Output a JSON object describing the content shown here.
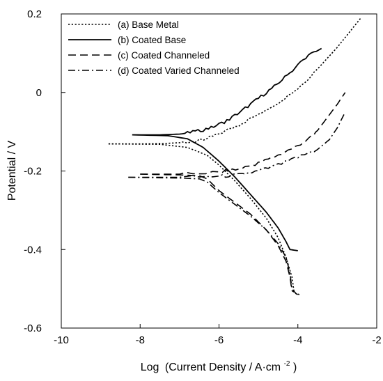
{
  "chart_data": {
    "type": "line",
    "xlabel_prefix": "Log",
    "xlabel_main": "(Current Density / A·cm",
    "xlabel_sup": "-2",
    "xlabel_suffix": ")",
    "ylabel": "Potential / V",
    "xlim": [
      -10,
      -2
    ],
    "ylim": [
      -0.6,
      0.2
    ],
    "xticks": [
      -10,
      -8,
      -6,
      -4,
      -2
    ],
    "yticks": [
      0.2,
      0,
      -0.2,
      -0.4,
      -0.6
    ],
    "xtick_labels": [
      "-10",
      "-8",
      "-6",
      "-4",
      "-2"
    ],
    "ytick_labels": [
      "0.2",
      "0",
      "-0.2",
      "-0.4",
      "-0.6"
    ],
    "grid": false,
    "legend_position": "top-left",
    "series": [
      {
        "name": "(a) Base Metal",
        "dash": "dotted",
        "anodic": [
          [
            -8.8,
            -0.131
          ],
          [
            -8.0,
            -0.131
          ],
          [
            -7.4,
            -0.13
          ],
          [
            -7.0,
            -0.128
          ],
          [
            -6.6,
            -0.124
          ],
          [
            -6.3,
            -0.118
          ],
          [
            -6.0,
            -0.105
          ],
          [
            -5.5,
            -0.083
          ],
          [
            -5.0,
            -0.055
          ],
          [
            -4.5,
            -0.025
          ],
          [
            -4.0,
            0.01
          ],
          [
            -3.5,
            0.06
          ],
          [
            -3.0,
            0.115
          ],
          [
            -2.4,
            0.19
          ]
        ],
        "cathodic": [
          [
            -8.8,
            -0.131
          ],
          [
            -7.5,
            -0.132
          ],
          [
            -6.8,
            -0.14
          ],
          [
            -6.3,
            -0.16
          ],
          [
            -6.0,
            -0.185
          ],
          [
            -5.6,
            -0.225
          ],
          [
            -5.2,
            -0.27
          ],
          [
            -4.8,
            -0.32
          ],
          [
            -4.5,
            -0.37
          ],
          [
            -4.3,
            -0.42
          ],
          [
            -4.15,
            -0.47
          ],
          [
            -4.1,
            -0.505
          ],
          [
            -4.05,
            -0.512
          ],
          [
            -3.95,
            -0.515
          ]
        ]
      },
      {
        "name": "(b) Coated Base",
        "dash": "solid",
        "anodic": [
          [
            -8.2,
            -0.108
          ],
          [
            -7.5,
            -0.108
          ],
          [
            -7.0,
            -0.106
          ],
          [
            -6.6,
            -0.1
          ],
          [
            -6.2,
            -0.09
          ],
          [
            -5.8,
            -0.072
          ],
          [
            -5.4,
            -0.045
          ],
          [
            -5.0,
            -0.015
          ],
          [
            -4.6,
            0.015
          ],
          [
            -4.2,
            0.05
          ],
          [
            -3.8,
            0.09
          ],
          [
            -3.4,
            0.112
          ]
        ],
        "cathodic": [
          [
            -8.2,
            -0.108
          ],
          [
            -7.3,
            -0.11
          ],
          [
            -6.8,
            -0.118
          ],
          [
            -6.4,
            -0.14
          ],
          [
            -6.0,
            -0.175
          ],
          [
            -5.6,
            -0.215
          ],
          [
            -5.2,
            -0.26
          ],
          [
            -4.8,
            -0.305
          ],
          [
            -4.5,
            -0.345
          ],
          [
            -4.3,
            -0.38
          ],
          [
            -4.2,
            -0.4
          ],
          [
            -4.0,
            -0.403
          ]
        ]
      },
      {
        "name": "(c) Coated Channeled",
        "dash": "dashed",
        "anodic": [
          [
            -8.0,
            -0.208
          ],
          [
            -7.0,
            -0.208
          ],
          [
            -6.0,
            -0.203
          ],
          [
            -5.5,
            -0.195
          ],
          [
            -5.0,
            -0.18
          ],
          [
            -4.5,
            -0.16
          ],
          [
            -4.0,
            -0.135
          ],
          [
            -3.6,
            -0.11
          ],
          [
            -3.3,
            -0.07
          ],
          [
            -3.0,
            -0.03
          ],
          [
            -2.8,
            0.0
          ]
        ],
        "cathodic": [
          [
            -8.0,
            -0.208
          ],
          [
            -7.0,
            -0.21
          ],
          [
            -6.5,
            -0.212
          ],
          [
            -6.3,
            -0.22
          ],
          [
            -6.0,
            -0.25
          ],
          [
            -5.6,
            -0.28
          ],
          [
            -5.2,
            -0.31
          ],
          [
            -4.8,
            -0.35
          ],
          [
            -4.5,
            -0.39
          ],
          [
            -4.3,
            -0.43
          ],
          [
            -4.2,
            -0.47
          ],
          [
            -4.15,
            -0.505
          ],
          [
            -4.1,
            -0.508
          ]
        ]
      },
      {
        "name": "(d) Coated Varied Channeled",
        "dash": "dashdot",
        "anodic": [
          [
            -8.3,
            -0.216
          ],
          [
            -7.0,
            -0.216
          ],
          [
            -6.0,
            -0.214
          ],
          [
            -5.5,
            -0.21
          ],
          [
            -5.0,
            -0.2
          ],
          [
            -4.5,
            -0.185
          ],
          [
            -4.0,
            -0.165
          ],
          [
            -3.5,
            -0.145
          ],
          [
            -3.2,
            -0.12
          ],
          [
            -3.0,
            -0.09
          ],
          [
            -2.8,
            -0.05
          ]
        ],
        "cathodic": [
          [
            -8.3,
            -0.216
          ],
          [
            -7.0,
            -0.218
          ],
          [
            -6.5,
            -0.22
          ],
          [
            -6.3,
            -0.228
          ],
          [
            -6.0,
            -0.255
          ],
          [
            -5.6,
            -0.285
          ],
          [
            -5.2,
            -0.315
          ],
          [
            -4.8,
            -0.35
          ],
          [
            -4.5,
            -0.385
          ],
          [
            -4.3,
            -0.42
          ],
          [
            -4.2,
            -0.46
          ],
          [
            -4.15,
            -0.5
          ],
          [
            -4.05,
            -0.512
          ],
          [
            -3.95,
            -0.518
          ]
        ]
      }
    ]
  }
}
